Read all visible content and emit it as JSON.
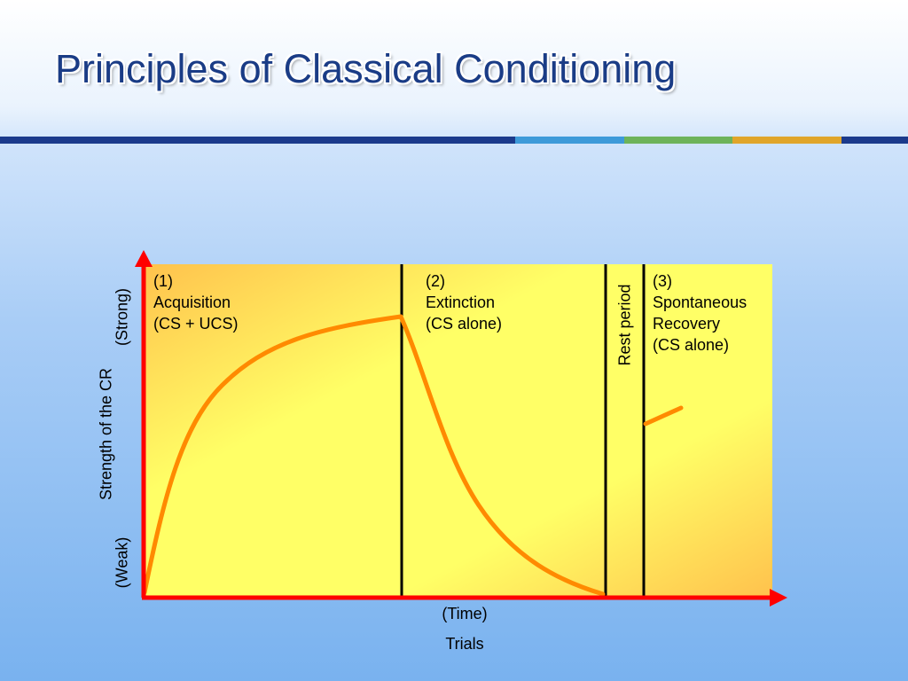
{
  "slide": {
    "title": "Principles of Classical Conditioning"
  },
  "chart_data": {
    "type": "line",
    "ylabel": "Strength of the CR",
    "y_high_label": "(Strong)",
    "y_low_label": "(Weak)",
    "x_label_top": "(Time)",
    "xlabel": "Trials",
    "phases": [
      {
        "number": "(1)",
        "name": "Acquisition",
        "condition": "(CS + UCS)"
      },
      {
        "number": "(2)",
        "name": "Extinction",
        "condition": "(CS alone)"
      },
      {
        "number": "",
        "name": "Rest period",
        "condition": ""
      },
      {
        "number": "(3)",
        "name": "Spontaneous",
        "name2": "Recovery",
        "condition": "(CS alone)"
      }
    ],
    "colors": {
      "curve": "#ff8a00",
      "axis": "#ff0000",
      "panel_light": "#ffff66",
      "panel_dark": "#ffc24d",
      "divider": "#000000"
    }
  }
}
